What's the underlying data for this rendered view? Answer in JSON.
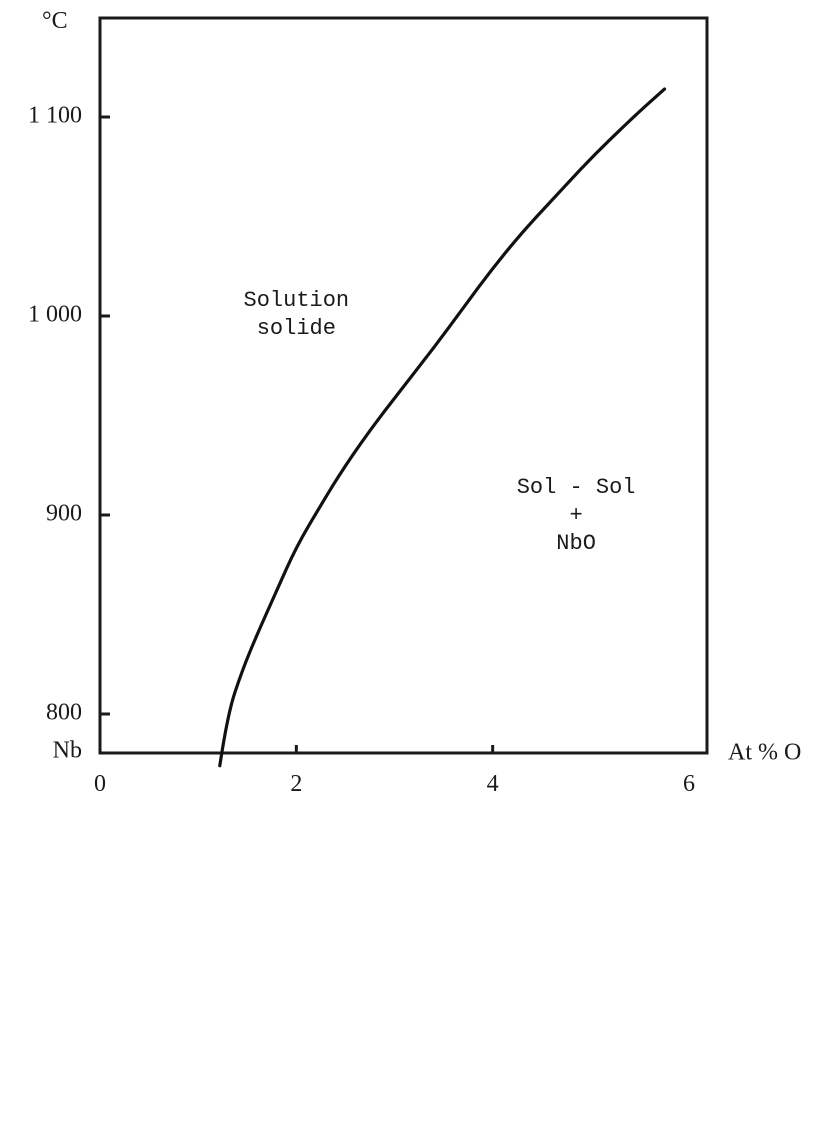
{
  "chart_data": {
    "type": "line",
    "title": "",
    "xlabel": "At % O",
    "ylabel": "°C",
    "x_origin_label": "Nb",
    "xlim": [
      0,
      6
    ],
    "ylim": [
      760,
      1122
    ],
    "xticks": [
      0,
      2,
      4,
      6
    ],
    "xtick_labels": [
      "0",
      "2",
      "4",
      "6"
    ],
    "yticks": [
      800,
      900,
      1000,
      1100
    ],
    "ytick_labels": [
      "800",
      "900",
      "1 000",
      "1 100"
    ],
    "grid": false,
    "series": [
      {
        "x": [
          1.22,
          1.3,
          1.45,
          1.6,
          1.8,
          2.0,
          2.25,
          2.5,
          2.8,
          3.1,
          3.4,
          3.7,
          4.0,
          4.3,
          4.6,
          4.9,
          5.2,
          5.5,
          5.75
        ],
        "y": [
          774,
          800,
          822,
          840,
          862,
          884,
          905,
          925,
          946,
          965,
          984,
          1004,
          1024,
          1042,
          1058,
          1074,
          1089,
          1103,
          1114
        ]
      }
    ],
    "annotations": [
      {
        "lines": [
          "Solution",
          "solide"
        ],
        "x": 2.0,
        "y": 1001
      },
      {
        "lines": [
          "Sol - Sol",
          "+",
          "NbO"
        ],
        "x": 4.85,
        "y": 900
      }
    ],
    "color": "#111111"
  }
}
